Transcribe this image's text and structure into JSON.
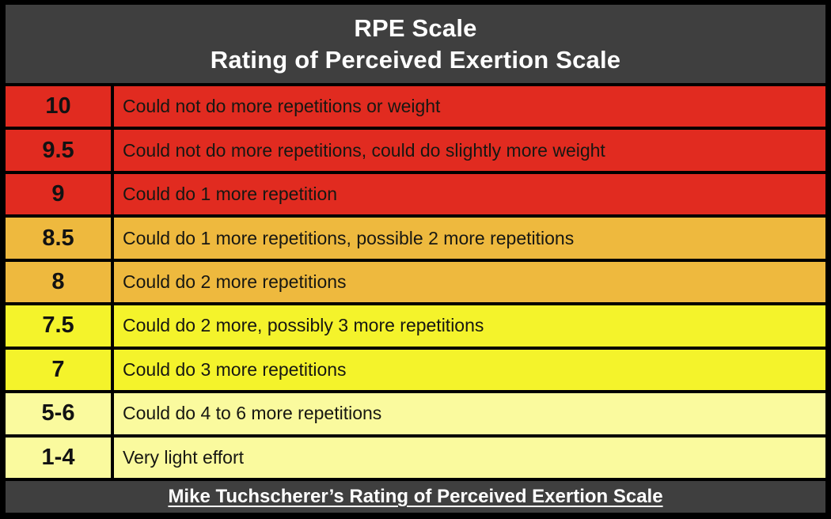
{
  "title": {
    "line1": "RPE Scale",
    "line2": "Rating of Perceived Exertion Scale"
  },
  "rows": [
    {
      "rating": "10",
      "description": "Could not do more repetitions or weight",
      "tier": "red"
    },
    {
      "rating": "9.5",
      "description": "Could not do more repetitions, could do slightly more weight",
      "tier": "red"
    },
    {
      "rating": "9",
      "description": "Could do 1 more repetition",
      "tier": "red"
    },
    {
      "rating": "8.5",
      "description": "Could do 1 more repetitions, possible 2 more repetitions",
      "tier": "orange"
    },
    {
      "rating": "8",
      "description": "Could do 2 more repetitions",
      "tier": "orange"
    },
    {
      "rating": "7.5",
      "description": "Could do 2 more, possibly 3 more repetitions",
      "tier": "yellow"
    },
    {
      "rating": "7",
      "description": "Could do 3 more repetitions",
      "tier": "yellow"
    },
    {
      "rating": "5-6",
      "description": "Could do 4 to 6 more repetitions",
      "tier": "pale"
    },
    {
      "rating": "1-4",
      "description": "Very light effort",
      "tier": "pale"
    }
  ],
  "footer": {
    "credit": "Mike Tuchscherer’s Rating of Perceived Exertion Scale"
  },
  "colors": {
    "header_bg": "#3F3F3F",
    "border": "#000000",
    "red": "#E12B20",
    "orange": "#EEB93E",
    "yellow": "#F4F32B",
    "pale_yellow": "#FAFA9E",
    "header_text": "#FFFFFF",
    "row_text": "#171712"
  }
}
